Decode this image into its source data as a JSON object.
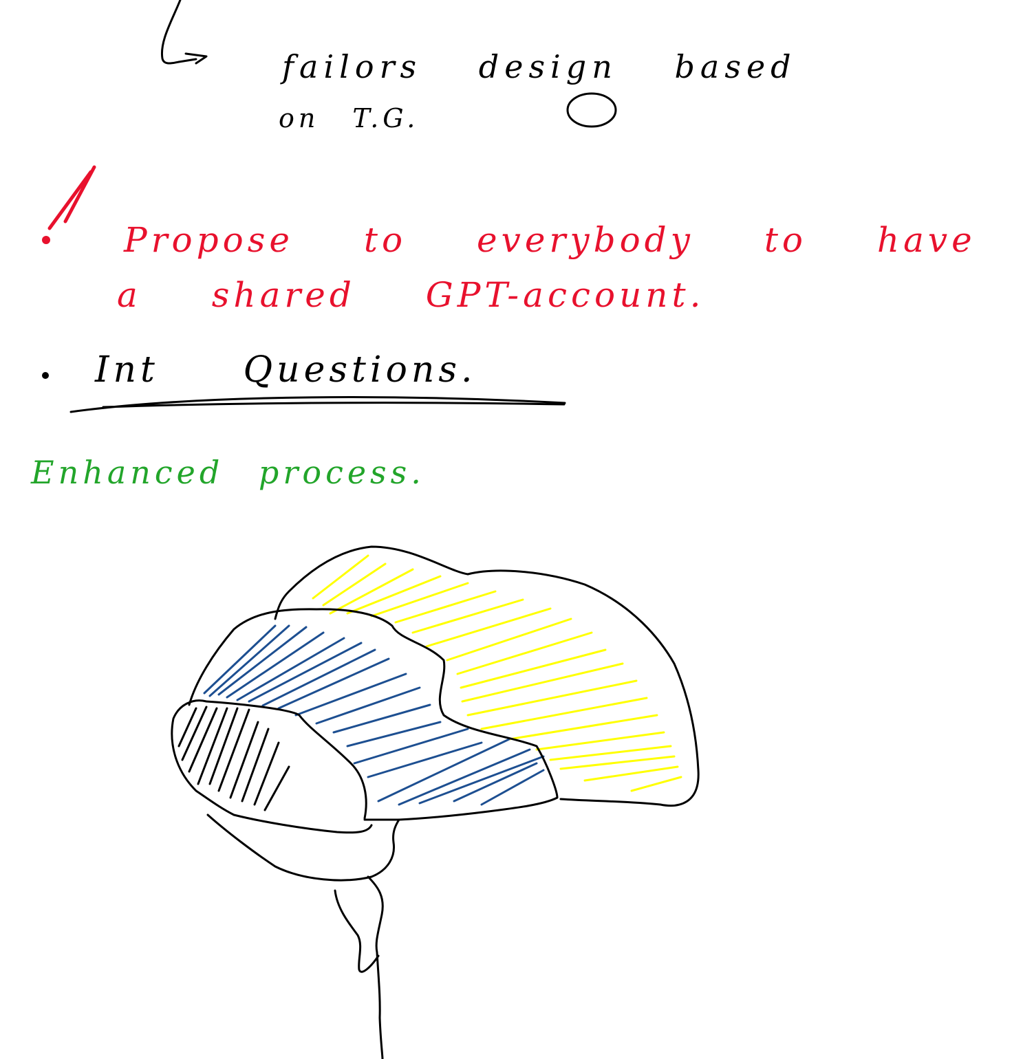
{
  "colors": {
    "black_ink": "#000000",
    "red_ink": "#e8112d",
    "green_ink": "#22a52a",
    "yellow_hatch": "#ffff00",
    "blue_hatch": "#1d4f91"
  },
  "notes": {
    "line1": "failors design based",
    "line1b": "on T.G.",
    "line2": "Propose to everybody to have",
    "line3": "a shared GPT-account.",
    "line4": "Int Questions.",
    "line5": "Enhanced process."
  }
}
